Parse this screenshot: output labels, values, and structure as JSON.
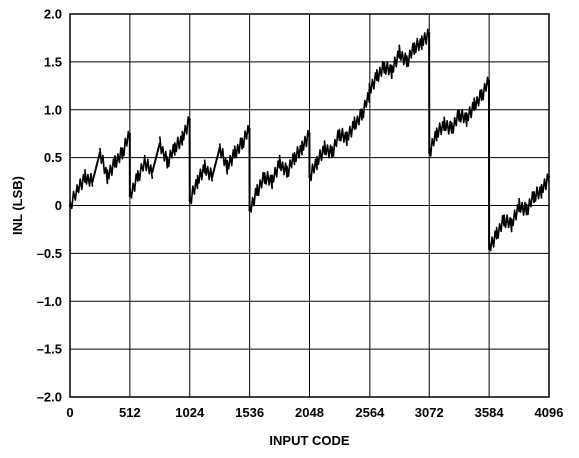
{
  "chart_data": {
    "type": "line",
    "title": "",
    "xlabel": "INPUT CODE",
    "ylabel": "INL (LSB)",
    "xlim": [
      0,
      4096
    ],
    "ylim": [
      -2.0,
      2.0
    ],
    "grid": true,
    "x_ticks": [
      0,
      512,
      1024,
      1536,
      2048,
      2564,
      3072,
      3584,
      4096
    ],
    "x_tick_labels": [
      "0",
      "512",
      "1024",
      "1536",
      "2048",
      "2564",
      "3072",
      "3584",
      "4096"
    ],
    "y_ticks": [
      -2.0,
      -1.5,
      -1.0,
      -0.5,
      0,
      0.5,
      1.0,
      1.5,
      2.0
    ],
    "y_tick_labels": [
      "–2.0",
      "–1.5",
      "–1.0",
      "–0.5",
      "0",
      "0.5",
      "1.0",
      "1.5",
      "2.0"
    ],
    "series": [
      {
        "x": [
          0,
          60,
          128,
          192,
          256,
          320,
          384,
          448,
          511,
          512,
          580,
          640,
          704,
          768,
          832,
          896,
          960,
          1023,
          1024,
          1090,
          1152,
          1216,
          1280,
          1344,
          1408,
          1472,
          1535,
          1536,
          1600,
          1664,
          1728,
          1792,
          1856,
          1920,
          1984,
          2047,
          2048,
          2112,
          2176,
          2240,
          2304,
          2368,
          2432,
          2496,
          2559,
          2560,
          2624,
          2688,
          2752,
          2816,
          2880,
          2944,
          3008,
          3071,
          3072,
          3136,
          3200,
          3264,
          3328,
          3392,
          3456,
          3520,
          3583,
          3584,
          3648,
          3712,
          3776,
          3840,
          3904,
          3968,
          4032,
          4095
        ],
        "y": [
          0.0,
          0.15,
          0.3,
          0.25,
          0.55,
          0.3,
          0.45,
          0.55,
          0.75,
          0.1,
          0.3,
          0.45,
          0.35,
          0.65,
          0.45,
          0.6,
          0.7,
          0.9,
          0.05,
          0.25,
          0.4,
          0.3,
          0.6,
          0.4,
          0.55,
          0.65,
          0.8,
          -0.05,
          0.15,
          0.3,
          0.25,
          0.45,
          0.35,
          0.5,
          0.6,
          0.75,
          0.3,
          0.45,
          0.6,
          0.55,
          0.75,
          0.7,
          0.85,
          0.95,
          1.15,
          1.2,
          1.35,
          1.45,
          1.4,
          1.6,
          1.5,
          1.65,
          1.7,
          1.8,
          0.55,
          0.75,
          0.85,
          0.8,
          0.95,
          0.9,
          1.05,
          1.15,
          1.3,
          -0.45,
          -0.3,
          -0.15,
          -0.2,
          0.0,
          -0.05,
          0.1,
          0.15,
          0.3
        ]
      }
    ]
  }
}
